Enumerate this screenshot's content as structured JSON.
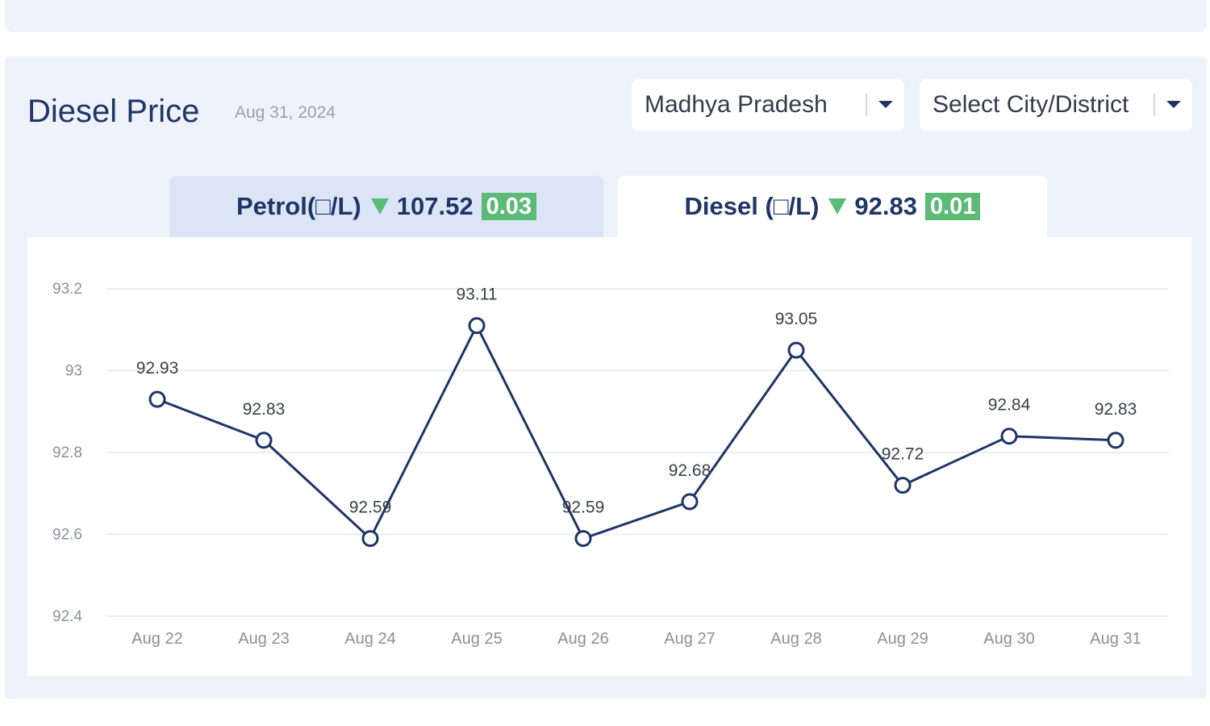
{
  "header": {
    "title": "Diesel Price",
    "date": "Aug 31, 2024"
  },
  "filters": {
    "state_value": "Madhya Pradesh",
    "city_value": "Select City/District"
  },
  "tabs": [
    {
      "label": "Petrol(□/L)",
      "price": "107.52",
      "change": "0.03",
      "trend": "down",
      "active": false
    },
    {
      "label": "Diesel (□/L)",
      "price": "92.83",
      "change": "0.01",
      "trend": "down",
      "active": true
    }
  ],
  "colors": {
    "line": "#1f3566",
    "badge": "#5cba77",
    "down_arrow": "#5cba77",
    "panel": "#eef2fb"
  },
  "chart_data": {
    "type": "line",
    "title": "",
    "xlabel": "",
    "ylabel": "",
    "categories": [
      "Aug 22",
      "Aug 23",
      "Aug 24",
      "Aug 25",
      "Aug 26",
      "Aug 27",
      "Aug 28",
      "Aug 29",
      "Aug 30",
      "Aug 31"
    ],
    "series": [
      {
        "values": [
          92.93,
          92.83,
          92.59,
          93.11,
          92.59,
          92.68,
          93.05,
          92.72,
          92.84,
          92.83
        ]
      }
    ],
    "data_labels": [
      "92.93",
      "92.83",
      "92.59",
      "93.11",
      "92.59",
      "92.68",
      "93.05",
      "92.72",
      "92.84",
      "92.83"
    ],
    "yticks": [
      "93.2",
      "93",
      "92.8",
      "92.6",
      "92.4"
    ],
    "ylim": [
      92.4,
      93.2
    ],
    "grid": true,
    "legend": "none"
  }
}
